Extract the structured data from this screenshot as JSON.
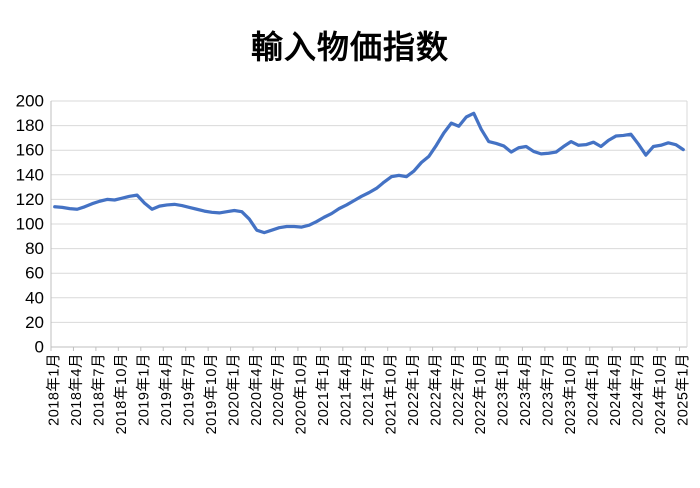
{
  "title": "輸入物価指数",
  "chart_data": {
    "type": "line",
    "title": "輸入物価指数",
    "xlabel": "",
    "ylabel": "",
    "ylim": [
      0,
      200
    ],
    "y_ticks": [
      0,
      20,
      40,
      60,
      80,
      100,
      120,
      140,
      160,
      180,
      200
    ],
    "x_tick_interval": 3,
    "grid": "horizontal",
    "legend": "none",
    "line_color": "#4472C4",
    "gridline_color": "#D9D9D9",
    "axis_color": "#BFBFBF",
    "categories": [
      "2018年1月",
      "2018年2月",
      "2018年3月",
      "2018年4月",
      "2018年5月",
      "2018年6月",
      "2018年7月",
      "2018年8月",
      "2018年9月",
      "2018年10月",
      "2018年11月",
      "2018年12月",
      "2019年1月",
      "2019年2月",
      "2019年3月",
      "2019年4月",
      "2019年5月",
      "2019年6月",
      "2019年7月",
      "2019年8月",
      "2019年9月",
      "2019年10月",
      "2019年11月",
      "2019年12月",
      "2020年1月",
      "2020年2月",
      "2020年3月",
      "2020年4月",
      "2020年5月",
      "2020年6月",
      "2020年7月",
      "2020年8月",
      "2020年9月",
      "2020年10月",
      "2020年11月",
      "2020年12月",
      "2021年1月",
      "2021年2月",
      "2021年3月",
      "2021年4月",
      "2021年5月",
      "2021年6月",
      "2021年7月",
      "2021年8月",
      "2021年9月",
      "2021年10月",
      "2021年11月",
      "2021年12月",
      "2022年1月",
      "2022年2月",
      "2022年3月",
      "2022年4月",
      "2022年5月",
      "2022年6月",
      "2022年7月",
      "2022年8月",
      "2022年9月",
      "2022年10月",
      "2022年11月",
      "2022年12月",
      "2023年1月",
      "2023年2月",
      "2023年3月",
      "2023年4月",
      "2023年5月",
      "2023年6月",
      "2023年7月",
      "2023年8月",
      "2023年9月",
      "2023年10月",
      "2023年11月",
      "2023年12月",
      "2024年1月",
      "2024年2月",
      "2024年3月",
      "2024年4月",
      "2024年5月",
      "2024年6月",
      "2024年7月",
      "2024年8月",
      "2024年9月",
      "2024年10月",
      "2024年11月",
      "2024年12月",
      "2025年1月"
    ],
    "series": [
      {
        "name": "輸入物価指数",
        "values": [
          114,
          113.5,
          112.5,
          112,
          114,
          116.5,
          118.5,
          120,
          119.5,
          121,
          122.5,
          123.5,
          117,
          112,
          114.5,
          115.5,
          116,
          115,
          113.5,
          112,
          110.5,
          109.5,
          109,
          110,
          111,
          110,
          104,
          95,
          93,
          95,
          97,
          98,
          98,
          97.5,
          99,
          102,
          105.5,
          108.5,
          112.5,
          115.5,
          119,
          122.5,
          125.5,
          129,
          134,
          138.5,
          139.5,
          138.5,
          143,
          150,
          155,
          164,
          174,
          182,
          179.5,
          187,
          190,
          177,
          167,
          165.5,
          163.5,
          158.5,
          162,
          163,
          159,
          157,
          157.5,
          158.5,
          163,
          167,
          164,
          164.5,
          166.5,
          163,
          168,
          171.5,
          172,
          173,
          165,
          156,
          163,
          164,
          166,
          164.5,
          160.5
        ]
      }
    ]
  }
}
